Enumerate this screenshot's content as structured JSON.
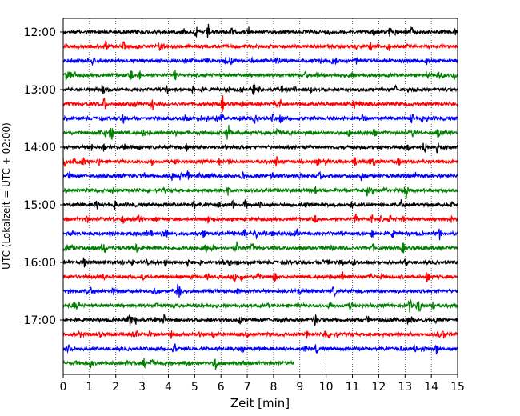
{
  "chart_data": {
    "type": "line",
    "title": "",
    "xlabel": "Zeit  [min]",
    "ylabel": "UTC (Lokalzeit = UTC + 02:00)",
    "xlim": [
      0,
      15
    ],
    "x_ticks": [
      "0",
      "1",
      "2",
      "3",
      "4",
      "5",
      "6",
      "7",
      "8",
      "9",
      "10",
      "11",
      "12",
      "13",
      "14",
      "15"
    ],
    "y_tick_labels": [
      "12:00",
      "13:00",
      "14:00",
      "15:00",
      "16:00",
      "17:00"
    ],
    "grid": "vertical dotted lines at each minute",
    "trace_interval_min": 15,
    "trace_colors": [
      "#000000",
      "#ff0000",
      "#0000ff",
      "#008000"
    ],
    "traces": [
      {
        "start": "12:00",
        "color": "#000000",
        "end_min": 15
      },
      {
        "start": "12:15",
        "color": "#ff0000",
        "end_min": 15
      },
      {
        "start": "12:30",
        "color": "#0000ff",
        "end_min": 15
      },
      {
        "start": "12:45",
        "color": "#008000",
        "end_min": 15
      },
      {
        "start": "13:00",
        "color": "#000000",
        "end_min": 15
      },
      {
        "start": "13:15",
        "color": "#ff0000",
        "end_min": 15
      },
      {
        "start": "13:30",
        "color": "#0000ff",
        "end_min": 15
      },
      {
        "start": "13:45",
        "color": "#008000",
        "end_min": 15
      },
      {
        "start": "14:00",
        "color": "#000000",
        "end_min": 15
      },
      {
        "start": "14:15",
        "color": "#ff0000",
        "end_min": 15
      },
      {
        "start": "14:30",
        "color": "#0000ff",
        "end_min": 15
      },
      {
        "start": "14:45",
        "color": "#008000",
        "end_min": 15
      },
      {
        "start": "15:00",
        "color": "#000000",
        "end_min": 15
      },
      {
        "start": "15:15",
        "color": "#ff0000",
        "end_min": 15
      },
      {
        "start": "15:30",
        "color": "#0000ff",
        "end_min": 15
      },
      {
        "start": "15:45",
        "color": "#008000",
        "end_min": 15
      },
      {
        "start": "16:00",
        "color": "#000000",
        "end_min": 15
      },
      {
        "start": "16:15",
        "color": "#ff0000",
        "end_min": 15
      },
      {
        "start": "16:30",
        "color": "#0000ff",
        "end_min": 15
      },
      {
        "start": "16:45",
        "color": "#008000",
        "end_min": 15
      },
      {
        "start": "17:00",
        "color": "#000000",
        "end_min": 15
      },
      {
        "start": "17:15",
        "color": "#ff0000",
        "end_min": 15
      },
      {
        "start": "17:30",
        "color": "#0000ff",
        "end_min": 15
      },
      {
        "start": "17:45",
        "color": "#008000",
        "end_min": 8.8
      }
    ]
  }
}
